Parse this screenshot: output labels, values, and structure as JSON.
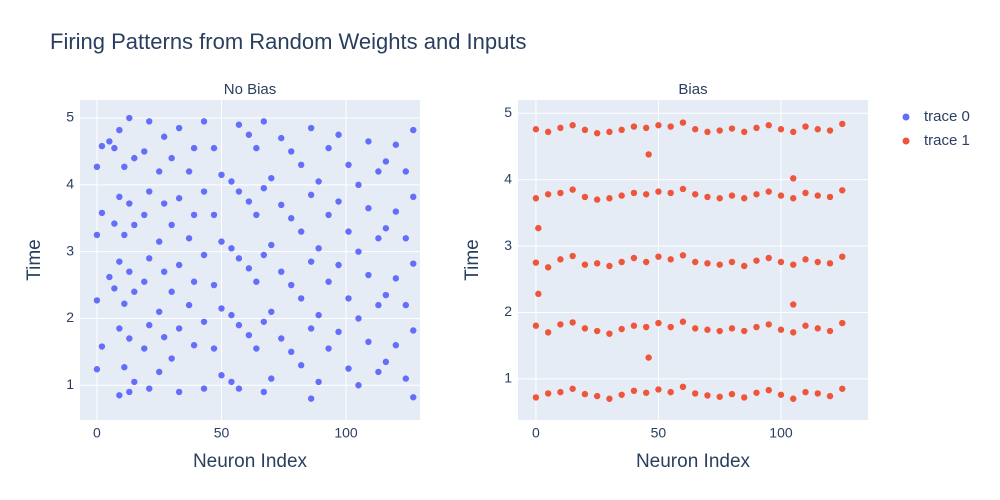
{
  "title": "Firing Patterns from Random Weights and Inputs",
  "chart_data": [
    {
      "type": "scatter",
      "title": "No Bias",
      "x_label": "Neuron Index",
      "y_label": "Time",
      "xlim": [
        -6.8,
        129.7
      ],
      "ylim": [
        0.48,
        5.27
      ],
      "xticks": [
        0,
        50,
        100
      ],
      "yticks": [
        1,
        2,
        3,
        4,
        5
      ],
      "grid": true,
      "series": [
        {
          "name": "trace 0",
          "color": "#636efa",
          "x": [
            0,
            0,
            0,
            0,
            2,
            2,
            2,
            5,
            5,
            7,
            7,
            7,
            9,
            9,
            9,
            9,
            9,
            11,
            11,
            11,
            11,
            13,
            13,
            13,
            13,
            13,
            15,
            15,
            15,
            15,
            19,
            19,
            19,
            19,
            21,
            21,
            21,
            21,
            21,
            25,
            25,
            25,
            25,
            27,
            27,
            27,
            27,
            30,
            30,
            30,
            30,
            33,
            33,
            33,
            33,
            33,
            37,
            37,
            37,
            39,
            39,
            39,
            39,
            43,
            43,
            43,
            43,
            43,
            47,
            47,
            47,
            47,
            50,
            50,
            50,
            50,
            54,
            54,
            54,
            54,
            57,
            57,
            57,
            57,
            57,
            61,
            61,
            61,
            61,
            64,
            64,
            64,
            64,
            67,
            67,
            67,
            67,
            67,
            70,
            70,
            70,
            70,
            74,
            74,
            74,
            74,
            78,
            78,
            78,
            78,
            82,
            82,
            82,
            82,
            86,
            86,
            86,
            86,
            86,
            89,
            89,
            89,
            89,
            93,
            93,
            93,
            93,
            97,
            97,
            97,
            97,
            101,
            101,
            101,
            101,
            105,
            105,
            105,
            105,
            109,
            109,
            109,
            109,
            113,
            113,
            113,
            113,
            116,
            116,
            116,
            116,
            120,
            120,
            120,
            120,
            124,
            124,
            124,
            124,
            127,
            127,
            127,
            127,
            127
          ],
          "values": [
            4.27,
            3.25,
            2.27,
            1.24,
            4.58,
            3.58,
            1.58,
            4.65,
            2.62,
            4.55,
            3.42,
            2.45,
            4.82,
            3.82,
            2.85,
            1.85,
            0.85,
            4.27,
            3.25,
            2.22,
            1.27,
            5.0,
            3.72,
            2.7,
            1.7,
            0.9,
            4.4,
            3.4,
            2.4,
            1.05,
            4.5,
            3.55,
            2.55,
            1.55,
            4.95,
            3.9,
            2.9,
            1.9,
            0.95,
            4.2,
            3.15,
            2.1,
            1.2,
            4.72,
            3.72,
            2.7,
            1.72,
            4.4,
            3.4,
            2.4,
            1.4,
            4.85,
            3.8,
            2.8,
            1.85,
            0.9,
            4.2,
            3.2,
            2.2,
            4.55,
            3.55,
            2.55,
            1.6,
            4.95,
            3.9,
            2.95,
            1.95,
            0.95,
            4.55,
            3.55,
            2.5,
            1.55,
            4.15,
            3.15,
            2.15,
            1.15,
            4.05,
            3.05,
            2.05,
            1.05,
            4.9,
            3.9,
            2.9,
            1.9,
            0.95,
            4.75,
            3.75,
            2.75,
            1.75,
            4.55,
            3.55,
            2.55,
            1.55,
            4.95,
            3.95,
            2.95,
            1.95,
            0.9,
            4.1,
            3.1,
            2.1,
            1.1,
            4.7,
            3.7,
            2.7,
            1.7,
            4.5,
            3.5,
            2.5,
            1.5,
            4.3,
            3.3,
            2.3,
            1.3,
            4.85,
            3.85,
            2.85,
            1.85,
            0.8,
            4.05,
            3.05,
            2.05,
            1.05,
            4.55,
            3.55,
            2.55,
            1.55,
            4.75,
            3.75,
            2.8,
            1.8,
            4.3,
            3.3,
            2.3,
            1.25,
            4.0,
            3.0,
            2.0,
            1.0,
            4.65,
            3.65,
            2.65,
            1.65,
            4.2,
            3.2,
            2.2,
            1.2,
            4.35,
            3.35,
            2.35,
            1.35,
            4.6,
            3.6,
            2.6,
            1.6,
            4.2,
            3.2,
            2.2,
            1.1,
            4.82,
            3.82,
            2.82,
            1.82,
            0.82
          ]
        }
      ]
    },
    {
      "type": "scatter",
      "title": "Bias",
      "x_label": "Neuron Index",
      "y_label": "Time",
      "xlim": [
        -7.3,
        135.5
      ],
      "ylim": [
        0.38,
        5.2
      ],
      "xticks": [
        0,
        50,
        100
      ],
      "yticks": [
        1,
        2,
        3,
        4,
        5
      ],
      "grid": true,
      "series": [
        {
          "name": "trace 1",
          "color": "#ef553b",
          "x": [
            0,
            0,
            0,
            0,
            0,
            5,
            5,
            5,
            5,
            5,
            10,
            10,
            10,
            10,
            10,
            15,
            15,
            15,
            15,
            15,
            20,
            20,
            20,
            20,
            20,
            25,
            25,
            25,
            25,
            25,
            30,
            30,
            30,
            30,
            30,
            35,
            35,
            35,
            35,
            35,
            40,
            40,
            40,
            40,
            40,
            45,
            45,
            45,
            45,
            45,
            50,
            50,
            50,
            50,
            50,
            55,
            55,
            55,
            55,
            55,
            60,
            60,
            60,
            60,
            60,
            65,
            65,
            65,
            65,
            65,
            70,
            70,
            70,
            70,
            70,
            75,
            75,
            75,
            75,
            75,
            80,
            80,
            80,
            80,
            80,
            85,
            85,
            85,
            85,
            85,
            90,
            90,
            90,
            90,
            90,
            95,
            95,
            95,
            95,
            95,
            100,
            100,
            100,
            100,
            100,
            105,
            105,
            105,
            105,
            105,
            110,
            110,
            110,
            110,
            110,
            115,
            115,
            115,
            115,
            115,
            120,
            120,
            120,
            120,
            120,
            125,
            125,
            125,
            125,
            125,
            46,
            46,
            105,
            105,
            1,
            1
          ],
          "values": [
            0.72,
            1.8,
            2.75,
            3.72,
            4.76,
            0.78,
            1.7,
            2.68,
            3.78,
            4.72,
            0.8,
            1.82,
            2.8,
            3.8,
            4.78,
            0.85,
            1.85,
            2.85,
            3.85,
            4.82,
            0.77,
            1.76,
            2.72,
            3.74,
            4.75,
            0.74,
            1.72,
            2.74,
            3.7,
            4.7,
            0.7,
            1.68,
            2.7,
            3.72,
            4.72,
            0.76,
            1.75,
            2.76,
            3.76,
            4.75,
            0.82,
            1.8,
            2.82,
            3.8,
            4.8,
            0.79,
            1.78,
            2.76,
            3.78,
            4.78,
            0.84,
            1.84,
            2.84,
            3.82,
            4.82,
            0.8,
            1.78,
            2.8,
            3.8,
            4.8,
            0.88,
            1.86,
            2.86,
            3.86,
            4.86,
            0.78,
            1.76,
            2.76,
            3.78,
            4.76,
            0.75,
            1.74,
            2.74,
            3.74,
            4.72,
            0.73,
            1.72,
            2.72,
            3.72,
            4.74,
            0.77,
            1.76,
            2.76,
            3.76,
            4.77,
            0.72,
            1.72,
            2.7,
            3.72,
            4.72,
            0.79,
            1.78,
            2.78,
            3.78,
            4.78,
            0.83,
            1.82,
            2.82,
            3.82,
            4.82,
            0.76,
            1.74,
            2.76,
            3.76,
            4.76,
            0.7,
            1.7,
            2.72,
            3.72,
            4.72,
            0.8,
            1.8,
            2.8,
            3.8,
            4.8,
            0.78,
            1.76,
            2.76,
            3.76,
            4.76,
            0.74,
            1.72,
            2.74,
            3.74,
            4.74,
            0.85,
            1.84,
            2.84,
            3.84,
            4.84,
            4.38,
            1.32,
            4.02,
            2.12,
            3.27,
            2.28
          ]
        }
      ]
    }
  ]
}
